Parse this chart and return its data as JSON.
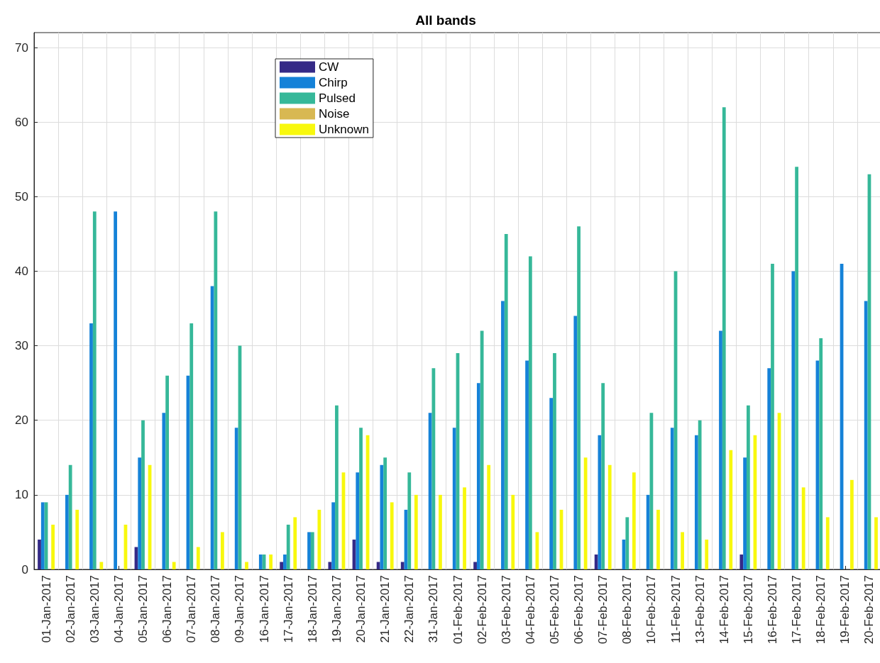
{
  "chart_data": {
    "type": "bar",
    "title": "All bands",
    "categories": [
      "01-Jan-2017",
      "02-Jan-2017",
      "03-Jan-2017",
      "04-Jan-2017",
      "05-Jan-2017",
      "06-Jan-2017",
      "07-Jan-2017",
      "08-Jan-2017",
      "09-Jan-2017",
      "16-Jan-2017",
      "17-Jan-2017",
      "18-Jan-2017",
      "19-Jan-2017",
      "20-Jan-2017",
      "21-Jan-2017",
      "22-Jan-2017",
      "31-Jan-2017",
      "01-Feb-2017",
      "02-Feb-2017",
      "03-Feb-2017",
      "04-Feb-2017",
      "05-Feb-2017",
      "06-Feb-2017",
      "07-Feb-2017",
      "08-Feb-2017",
      "10-Feb-2017",
      "11-Feb-2017",
      "13-Feb-2017",
      "14-Feb-2017",
      "15-Feb-2017",
      "16-Feb-2017",
      "17-Feb-2017",
      "18-Feb-2017",
      "19-Feb-2017",
      "20-Feb-2017"
    ],
    "series": [
      {
        "name": "CW",
        "color": "#352a87",
        "values": [
          4,
          0,
          0,
          0,
          3,
          0,
          0,
          0,
          0,
          0,
          1,
          0,
          1,
          4,
          1,
          1,
          0,
          0,
          1,
          0,
          0,
          0,
          0,
          2,
          0,
          0,
          0,
          0,
          0,
          2,
          0,
          0,
          0,
          0,
          0
        ]
      },
      {
        "name": "Chirp",
        "color": "#1582d8",
        "values": [
          9,
          10,
          33,
          48,
          15,
          21,
          26,
          38,
          19,
          2,
          2,
          5,
          9,
          13,
          14,
          8,
          21,
          19,
          25,
          36,
          28,
          23,
          34,
          18,
          4,
          10,
          19,
          18,
          32,
          15,
          27,
          40,
          28,
          41,
          36
        ]
      },
      {
        "name": "Pulsed",
        "color": "#36b899",
        "values": [
          9,
          14,
          48,
          null,
          20,
          26,
          33,
          48,
          30,
          2,
          6,
          5,
          22,
          19,
          15,
          13,
          27,
          29,
          32,
          45,
          42,
          29,
          46,
          25,
          7,
          21,
          40,
          20,
          62,
          22,
          41,
          54,
          31,
          null,
          53
        ]
      },
      {
        "name": "Noise",
        "color": "#d8b852",
        "values": [
          0,
          0,
          0,
          0,
          0,
          0,
          0,
          0,
          0,
          0,
          0,
          0,
          0,
          0,
          0,
          0,
          0,
          0,
          0,
          0,
          0,
          0,
          0,
          0,
          0,
          0,
          0,
          0,
          0,
          0,
          0,
          0,
          0,
          0,
          0
        ]
      },
      {
        "name": "Unknown",
        "color": "#f8f80d",
        "values": [
          6,
          8,
          1,
          6,
          14,
          1,
          3,
          5,
          1,
          2,
          7,
          8,
          13,
          18,
          9,
          10,
          10,
          11,
          14,
          10,
          5,
          8,
          15,
          14,
          13,
          8,
          5,
          4,
          16,
          18,
          21,
          11,
          7,
          12,
          7
        ]
      }
    ],
    "ylim": [
      0,
      72
    ],
    "yticks": [
      0,
      10,
      20,
      30,
      40,
      50,
      60,
      70
    ],
    "grid": true,
    "legend": "top left"
  }
}
